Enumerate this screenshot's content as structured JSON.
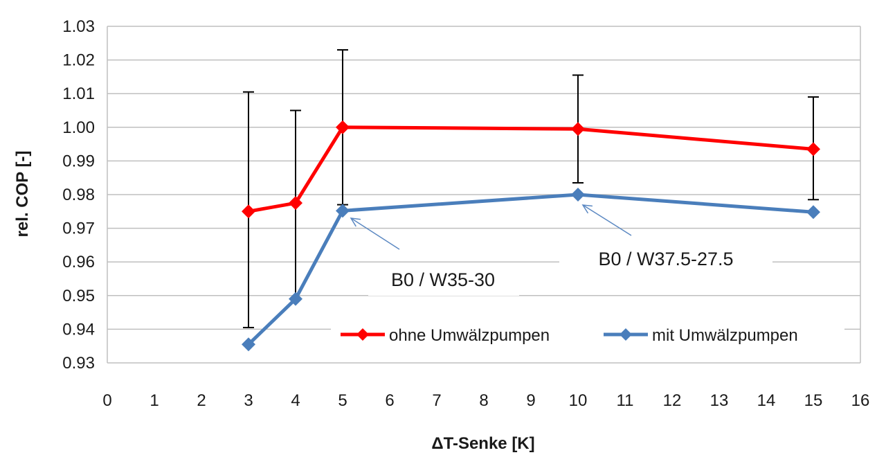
{
  "chart_data": {
    "type": "line",
    "title": "",
    "xlabel": "ΔT-Senke [K]",
    "ylabel": "rel. COP [-]",
    "xlim": [
      0,
      16
    ],
    "ylim": [
      0.93,
      1.03
    ],
    "x_ticks": [
      0,
      1,
      2,
      3,
      4,
      5,
      6,
      7,
      8,
      9,
      10,
      11,
      12,
      13,
      14,
      15,
      16
    ],
    "y_ticks": [
      0.93,
      0.94,
      0.95,
      0.96,
      0.97,
      0.98,
      0.99,
      1.0,
      1.01,
      1.02,
      1.03
    ],
    "y_tick_labels": [
      "0.93",
      "0.94",
      "0.95",
      "0.96",
      "0.97",
      "0.98",
      "0.99",
      "1.00",
      "1.01",
      "1.02",
      "1.03"
    ],
    "grid": "horizontal",
    "legend_position": "bottom-right",
    "series": [
      {
        "name": "ohne Umwälzpumpen",
        "color": "#ff0000",
        "marker": "diamond",
        "x": [
          3,
          4,
          5,
          10,
          15
        ],
        "y": [
          0.975,
          0.9775,
          1.0,
          0.9995,
          0.9935
        ]
      },
      {
        "name": "mit Umwälzpumpen",
        "color": "#4a7ebb",
        "marker": "diamond",
        "x": [
          3,
          4,
          5,
          10,
          15
        ],
        "y": [
          0.9355,
          0.949,
          0.9752,
          0.98,
          0.9748
        ]
      }
    ],
    "error_bars": [
      {
        "x": 3,
        "low": 0.9405,
        "high": 1.0105
      },
      {
        "x": 4,
        "low": 0.949,
        "high": 1.005
      },
      {
        "x": 5,
        "low": 0.977,
        "high": 1.023
      },
      {
        "x": 10,
        "low": 0.9835,
        "high": 1.0155
      },
      {
        "x": 15,
        "low": 0.9785,
        "high": 1.009
      }
    ],
    "annotations": [
      {
        "text": "B0 / W35-30",
        "x": 5,
        "y": 0.9752
      },
      {
        "text": "B0 / W37.5-27.5",
        "x": 10,
        "y": 0.98
      }
    ]
  }
}
